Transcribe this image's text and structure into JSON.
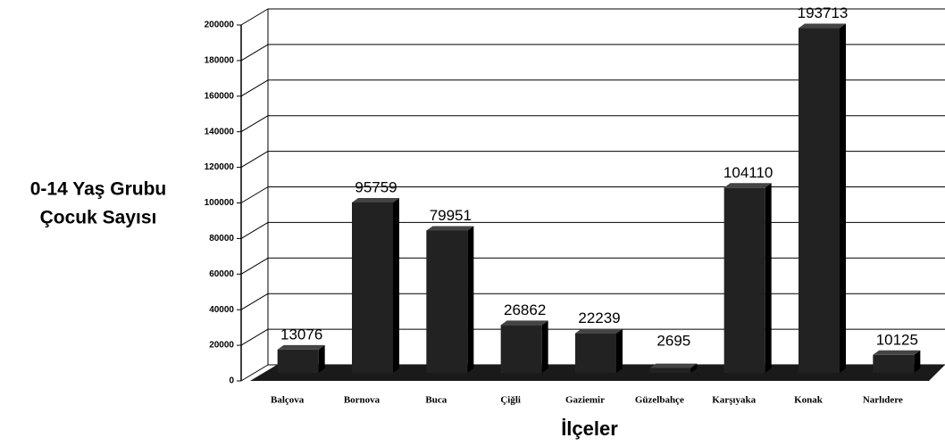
{
  "chart_data": {
    "type": "bar",
    "ylabel": [
      "0-14 Yaş Grubu",
      "Çocuk Sayısı"
    ],
    "xlabel": "İlçeler",
    "categories": [
      "Balçova",
      "Bornova",
      "Buca",
      "Çiğli",
      "Gaziemir",
      "Güzelbahçe",
      "Karşıyaka",
      "Konak",
      "Narlıdere"
    ],
    "values": [
      13076,
      95759,
      79951,
      26862,
      22239,
      2695,
      104110,
      193713,
      10125
    ],
    "color": "#222222",
    "ylim": [
      0,
      200000
    ],
    "yticks": [
      0,
      20000,
      40000,
      60000,
      80000,
      100000,
      120000,
      140000,
      160000,
      180000,
      200000
    ],
    "grid": true
  }
}
